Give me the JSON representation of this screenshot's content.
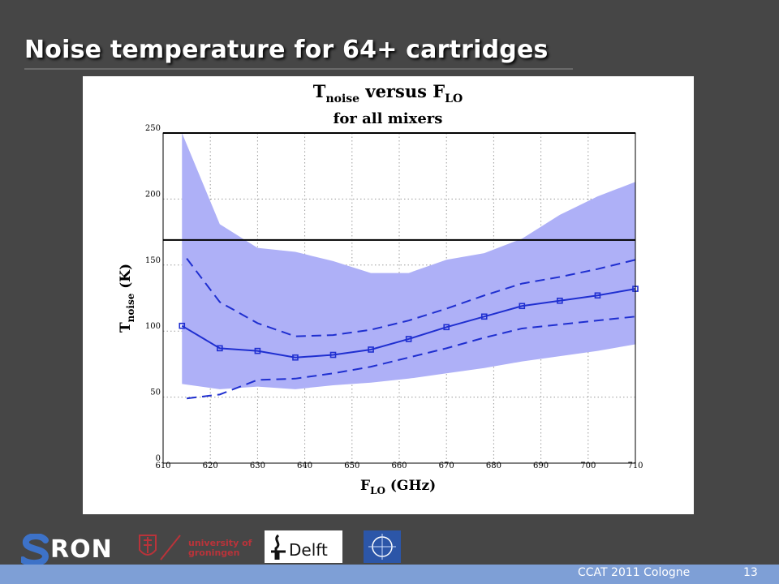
{
  "slide": {
    "title": "Noise temperature for 64+ cartridges"
  },
  "footer": {
    "text": "CCAT 2011 Cologne",
    "page_number": "13"
  },
  "logos": {
    "sron": "RON",
    "groningen": "university of groningen",
    "tudelft": "Delft"
  },
  "chart_data": {
    "type": "line",
    "title_line1_main": "T",
    "title_line1_sub": "noise",
    "title_line1_mid": " versus F",
    "title_line1_sub2": "LO",
    "title_line2": "for all mixers",
    "xlabel_main": "F",
    "xlabel_sub": "LO",
    "xlabel_unit": " (GHz)",
    "ylabel_main": "T",
    "ylabel_sub": "noise",
    "ylabel_unit": " (K)",
    "xlim": [
      610,
      710
    ],
    "ylim": [
      0,
      250
    ],
    "x_ticks": [
      610,
      620,
      630,
      640,
      650,
      660,
      670,
      680,
      690,
      700,
      710
    ],
    "y_ticks": [
      0,
      50,
      100,
      150,
      200,
      250
    ],
    "grid": true,
    "horizontal_line_y": 169,
    "colors": {
      "band": "#aeb0f7",
      "series": "#1f2fd0",
      "spec_line": "#000000",
      "grid": "#9a9a9a"
    },
    "band": {
      "x": [
        614,
        622,
        630,
        638,
        646,
        654,
        662,
        670,
        678,
        686,
        694,
        702,
        710
      ],
      "upper": [
        250,
        181,
        163,
        160,
        153,
        144,
        144,
        154,
        159,
        170,
        188,
        202,
        213
      ],
      "lower": [
        60,
        56,
        58,
        56,
        59,
        61,
        64,
        68,
        72,
        77,
        81,
        85,
        90
      ]
    },
    "series": [
      {
        "style": "solid-markers",
        "x": [
          614,
          622,
          630,
          638,
          646,
          654,
          662,
          670,
          678,
          686,
          694,
          702,
          710
        ],
        "values": [
          104,
          87,
          85,
          80,
          82,
          86,
          94,
          103,
          111,
          119,
          123,
          127,
          132
        ]
      },
      {
        "style": "dashed",
        "x": [
          615,
          622,
          630,
          638,
          646,
          654,
          662,
          670,
          678,
          686,
          694,
          702,
          710
        ],
        "values": [
          155,
          122,
          106,
          96,
          97,
          101,
          108,
          117,
          127,
          136,
          141,
          147,
          154
        ]
      },
      {
        "style": "dashed",
        "x": [
          615,
          622,
          630,
          638,
          646,
          654,
          662,
          670,
          678,
          686,
          694,
          702,
          710
        ],
        "values": [
          49,
          52,
          63,
          64,
          68,
          73,
          80,
          87,
          95,
          102,
          105,
          108,
          111
        ]
      }
    ]
  }
}
